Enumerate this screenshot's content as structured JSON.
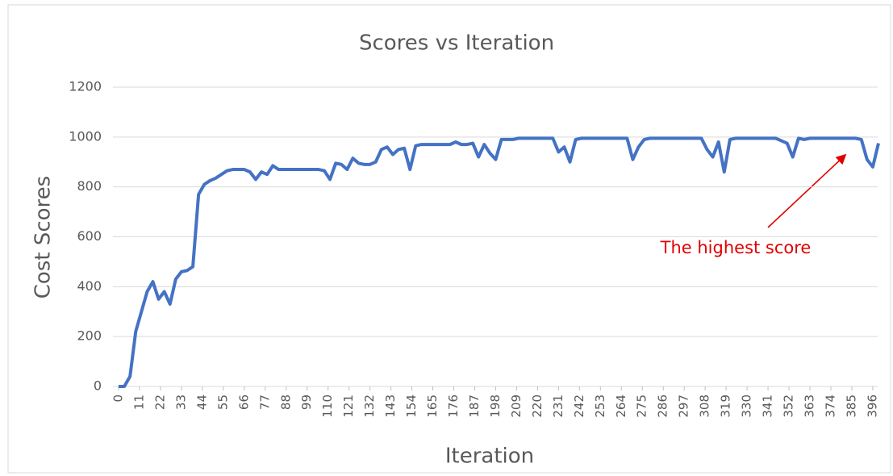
{
  "chart_data": {
    "type": "line",
    "title": "Scores vs Iteration",
    "xlabel": "Iteration",
    "ylabel": "Cost Scores",
    "annotation": "The highest score",
    "xlim": [
      0,
      399
    ],
    "ylim": [
      0,
      1200
    ],
    "yticks": [
      0,
      200,
      400,
      600,
      800,
      1000,
      1200
    ],
    "xticks": [
      0,
      11,
      22,
      33,
      44,
      55,
      66,
      77,
      88,
      99,
      110,
      121,
      132,
      143,
      154,
      165,
      176,
      187,
      198,
      209,
      220,
      231,
      242,
      253,
      264,
      275,
      286,
      297,
      308,
      319,
      330,
      341,
      352,
      363,
      374,
      385,
      396
    ],
    "grid": true,
    "series": [
      {
        "name": "Scores",
        "color": "#4472c4",
        "x": [
          0,
          3,
          6,
          9,
          12,
          15,
          18,
          21,
          24,
          27,
          30,
          33,
          36,
          39,
          42,
          45,
          48,
          51,
          54,
          57,
          60,
          63,
          66,
          69,
          72,
          75,
          78,
          81,
          84,
          87,
          90,
          93,
          96,
          99,
          102,
          105,
          108,
          111,
          114,
          117,
          120,
          123,
          126,
          129,
          132,
          135,
          138,
          141,
          144,
          147,
          150,
          153,
          156,
          159,
          162,
          165,
          168,
          171,
          174,
          177,
          180,
          183,
          186,
          189,
          192,
          195,
          198,
          201,
          204,
          207,
          210,
          213,
          216,
          219,
          222,
          225,
          228,
          231,
          234,
          237,
          240,
          243,
          246,
          249,
          252,
          255,
          258,
          261,
          264,
          267,
          270,
          273,
          276,
          279,
          282,
          285,
          288,
          291,
          294,
          297,
          300,
          303,
          306,
          309,
          312,
          315,
          318,
          321,
          324,
          327,
          330,
          333,
          336,
          339,
          342,
          345,
          348,
          351,
          354,
          357,
          360,
          363,
          366,
          369,
          372,
          375,
          378,
          381,
          384,
          387,
          390,
          393,
          396,
          399
        ],
        "values": [
          0,
          0,
          40,
          220,
          300,
          380,
          420,
          350,
          380,
          330,
          430,
          460,
          465,
          480,
          770,
          810,
          825,
          835,
          850,
          865,
          870,
          870,
          870,
          860,
          830,
          860,
          850,
          885,
          870,
          870,
          870,
          870,
          870,
          870,
          870,
          870,
          865,
          830,
          895,
          890,
          870,
          915,
          895,
          890,
          890,
          900,
          950,
          960,
          930,
          950,
          955,
          870,
          965,
          970,
          970,
          970,
          970,
          970,
          970,
          980,
          970,
          970,
          975,
          920,
          970,
          935,
          910,
          990,
          990,
          990,
          995,
          995,
          995,
          995,
          995,
          995,
          995,
          940,
          960,
          900,
          990,
          995,
          995,
          995,
          995,
          995,
          995,
          995,
          995,
          995,
          910,
          960,
          990,
          995,
          995,
          995,
          995,
          995,
          995,
          995,
          995,
          995,
          995,
          950,
          920,
          980,
          860,
          990,
          995,
          995,
          995,
          995,
          995,
          995,
          995,
          995,
          985,
          975,
          920,
          995,
          990,
          995,
          995,
          995,
          995,
          995,
          995,
          995,
          995,
          995,
          990,
          910,
          880,
          975
        ]
      }
    ]
  }
}
